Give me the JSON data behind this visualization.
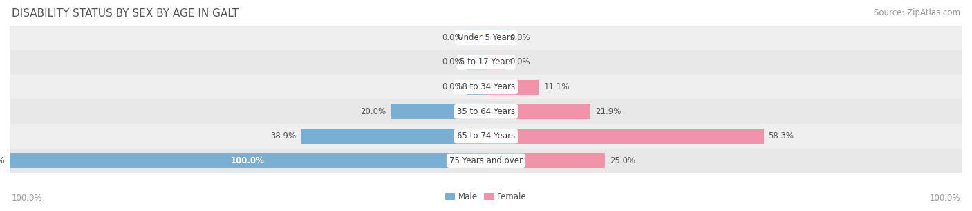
{
  "title": "DISABILITY STATUS BY SEX BY AGE IN GALT",
  "source": "Source: ZipAtlas.com",
  "categories": [
    "Under 5 Years",
    "5 to 17 Years",
    "18 to 34 Years",
    "35 to 64 Years",
    "65 to 74 Years",
    "75 Years and over"
  ],
  "male_values": [
    0.0,
    0.0,
    0.0,
    20.0,
    38.9,
    100.0
  ],
  "female_values": [
    0.0,
    0.0,
    11.1,
    21.9,
    58.3,
    25.0
  ],
  "male_color": "#7aafd4",
  "female_color": "#f093a8",
  "female_color_vivid": "#e8607a",
  "male_label": "Male",
  "female_label": "Female",
  "row_bg_even": "#efefef",
  "row_bg_odd": "#e8e8e8",
  "max_value": 100.0,
  "title_fontsize": 11,
  "source_fontsize": 8.5,
  "value_fontsize": 8.5,
  "category_fontsize": 8.5,
  "axis_label_fontsize": 8.5,
  "zero_stub": 4.0
}
